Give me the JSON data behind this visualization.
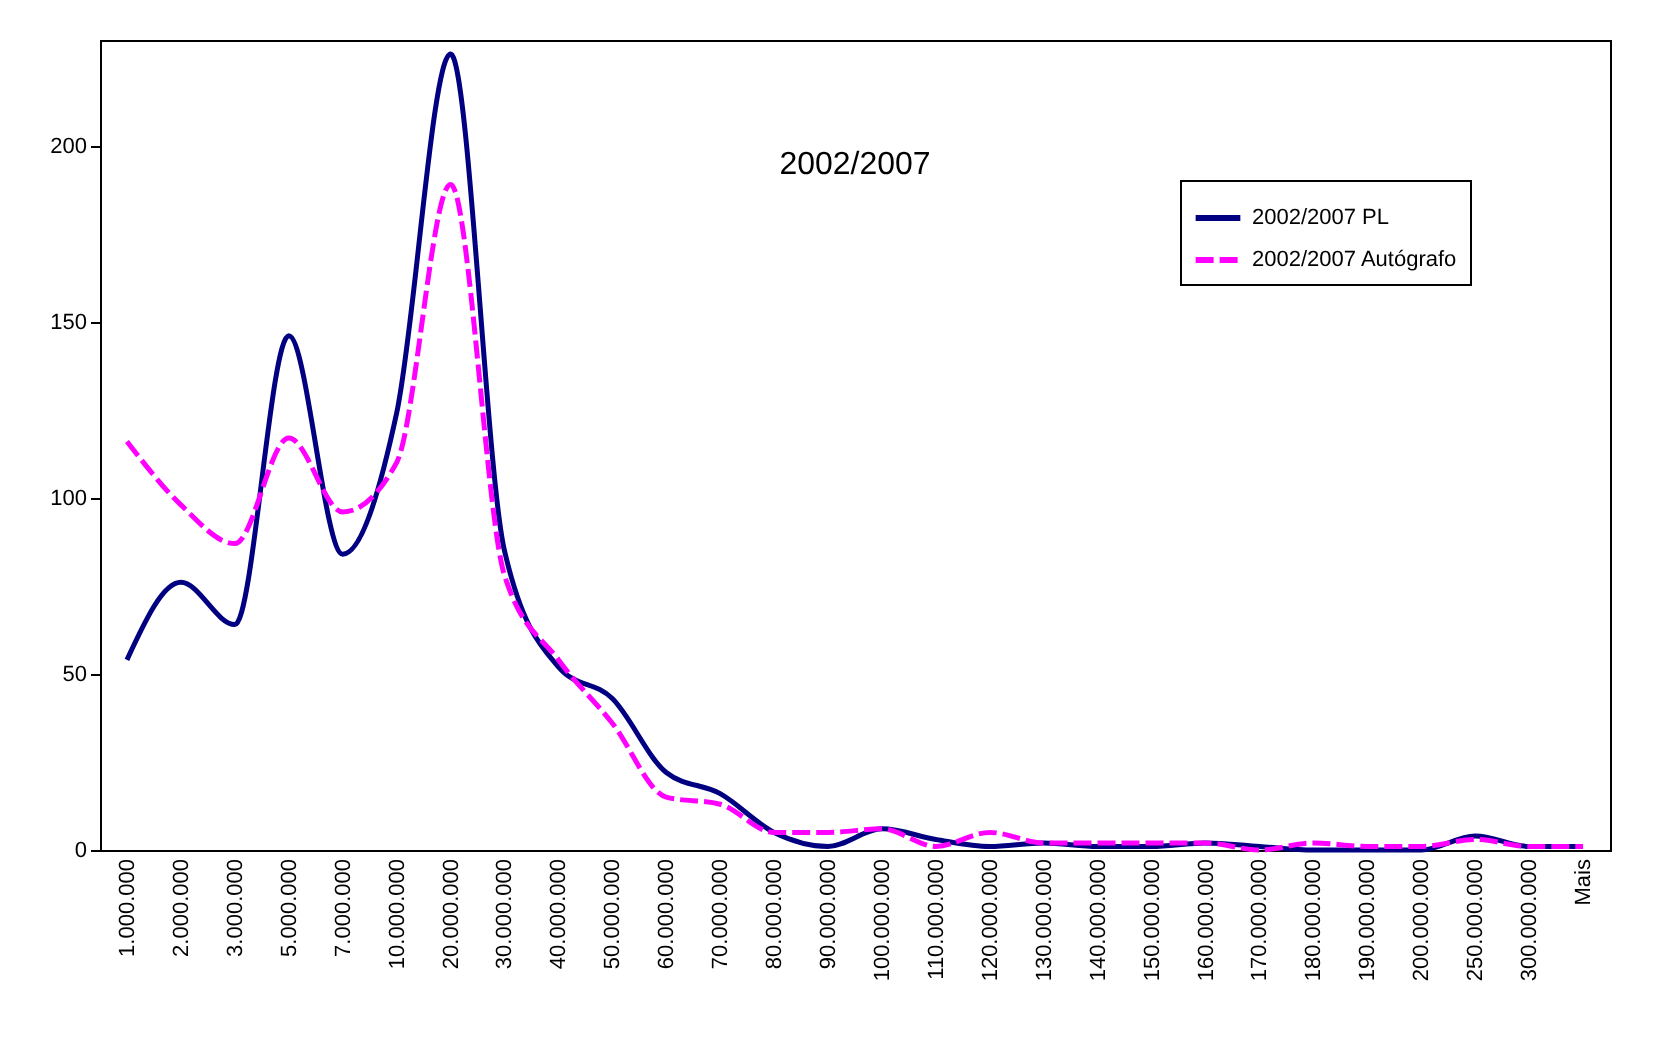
{
  "chart_data": {
    "type": "line",
    "title": "2002/2007",
    "categories": [
      "1.000.000",
      "2.000.000",
      "3.000.000",
      "5.000.000",
      "7.000.000",
      "10.000.000",
      "20.000.000",
      "30.000.000",
      "40.000.000",
      "50.000.000",
      "60.000.000",
      "70.000.000",
      "80.000.000",
      "90.000.000",
      "100.000.000",
      "110.000.000",
      "120.000.000",
      "130.000.000",
      "140.000.000",
      "150.000.000",
      "160.000.000",
      "170.000.000",
      "180.000.000",
      "190.000.000",
      "200.000.000",
      "250.000.000",
      "300.000.000",
      "Mais"
    ],
    "series": [
      {
        "name": "2002/2007 PL",
        "color": "#000080",
        "line_style": "solid",
        "values": [
          54,
          76,
          64,
          146,
          84,
          124,
          226,
          85,
          52,
          43,
          22,
          16,
          5,
          1,
          6,
          3,
          1,
          2,
          1,
          1,
          2,
          1,
          0,
          0,
          0,
          4,
          1,
          1
        ]
      },
      {
        "name": "2002/2007 Autógrafo",
        "color": "#ff00ff",
        "line_style": "dashed",
        "values": [
          116,
          98,
          87,
          117,
          96,
          110,
          189,
          78,
          54,
          36,
          15,
          13,
          5,
          5,
          6,
          1,
          5,
          2,
          2,
          2,
          2,
          0,
          2,
          1,
          1,
          3,
          1,
          1
        ]
      }
    ],
    "ylim": [
      0,
      230
    ],
    "yticks": [
      0,
      50,
      100,
      150,
      200
    ],
    "grid": false,
    "legend": "top right"
  }
}
